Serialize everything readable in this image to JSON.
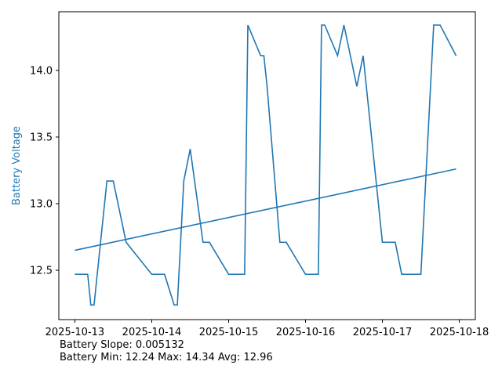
{
  "chart_data": {
    "type": "line",
    "title": "",
    "xlabel": "",
    "ylabel": "Battery Voltage",
    "ylabel_color": "#1f77b4",
    "line_color": "#1f77b4",
    "grid": false,
    "xlim": [
      "2025-10-12T19:00",
      "2025-10-18T05:00"
    ],
    "ylim": [
      12.13,
      14.44
    ],
    "x_ticks": [
      "2025-10-13",
      "2025-10-14",
      "2025-10-15",
      "2025-10-16",
      "2025-10-17",
      "2025-10-18"
    ],
    "y_ticks": [
      12.5,
      13.0,
      13.5,
      14.0
    ],
    "y_tick_labels": [
      "12.5",
      "13.0",
      "13.5",
      "14.0"
    ],
    "series": [
      {
        "x": [
          "2025-10-13T00:00",
          "2025-10-13T04:00",
          "2025-10-13T05:00",
          "2025-10-13T06:00",
          "2025-10-13T10:00",
          "2025-10-13T12:00",
          "2025-10-13T16:00",
          "2025-10-14T00:00",
          "2025-10-14T04:00",
          "2025-10-14T07:00",
          "2025-10-14T08:00",
          "2025-10-14T10:00",
          "2025-10-14T12:00",
          "2025-10-14T16:00",
          "2025-10-14T18:00",
          "2025-10-15T00:00",
          "2025-10-15T04:00",
          "2025-10-15T05:00",
          "2025-10-15T06:00",
          "2025-10-15T10:00",
          "2025-10-15T11:00",
          "2025-10-15T12:00",
          "2025-10-15T16:00",
          "2025-10-15T18:00",
          "2025-10-16T00:00",
          "2025-10-16T04:00",
          "2025-10-16T05:00",
          "2025-10-16T06:00",
          "2025-10-16T10:00",
          "2025-10-16T12:00",
          "2025-10-16T16:00",
          "2025-10-16T18:00",
          "2025-10-17T00:00",
          "2025-10-17T04:00",
          "2025-10-17T06:00",
          "2025-10-17T10:00",
          "2025-10-17T12:00",
          "2025-10-17T16:00",
          "2025-10-17T18:00",
          "2025-10-17T23:00"
        ],
        "values": [
          12.47,
          12.47,
          12.24,
          12.24,
          13.17,
          13.17,
          12.71,
          12.47,
          12.47,
          12.24,
          12.24,
          13.17,
          13.41,
          12.71,
          12.71,
          12.47,
          12.47,
          12.47,
          14.34,
          14.11,
          14.11,
          13.88,
          12.71,
          12.71,
          12.47,
          12.47,
          14.34,
          14.34,
          14.11,
          14.34,
          13.88,
          14.11,
          12.71,
          12.71,
          12.47,
          12.47,
          12.47,
          14.34,
          14.34,
          14.11
        ]
      }
    ],
    "trend": {
      "x": [
        "2025-10-13T00:00",
        "2025-10-17T23:00"
      ],
      "values": [
        12.65,
        13.26
      ]
    },
    "annotations": {
      "slope_text": "Battery Slope: 0.005132",
      "stats_text": "Battery Min: 12.24 Max: 14.34 Avg: 12.96"
    }
  }
}
